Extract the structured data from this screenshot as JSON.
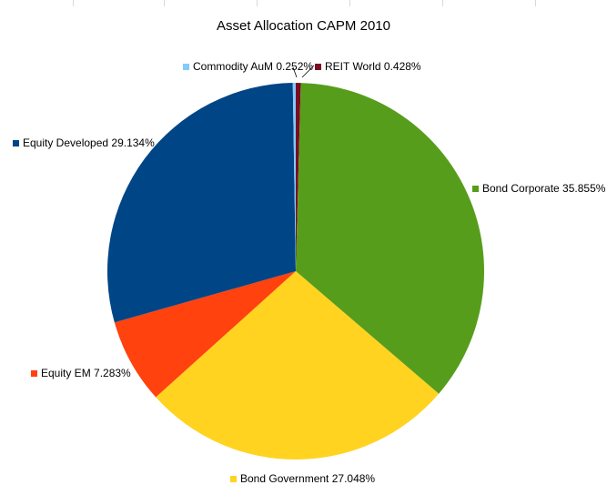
{
  "chart_data": {
    "type": "pie",
    "title": "Asset Allocation CAPM 2010",
    "slices": [
      {
        "label": "REIT World 0.428%",
        "value": 0.428,
        "color": "#7b0c23"
      },
      {
        "label": "Bond Corporate 35.855%",
        "value": 35.855,
        "color": "#579d1c"
      },
      {
        "label": "Bond Government 27.048%",
        "value": 27.048,
        "color": "#ffd320"
      },
      {
        "label": "Equity EM 7.283%",
        "value": 7.283,
        "color": "#ff420e"
      },
      {
        "label": "Equity Developed 29.134%",
        "value": 29.134,
        "color": "#004586"
      },
      {
        "label": "Commodity AuM 0.252%",
        "value": 0.252,
        "color": "#83caff"
      }
    ]
  }
}
